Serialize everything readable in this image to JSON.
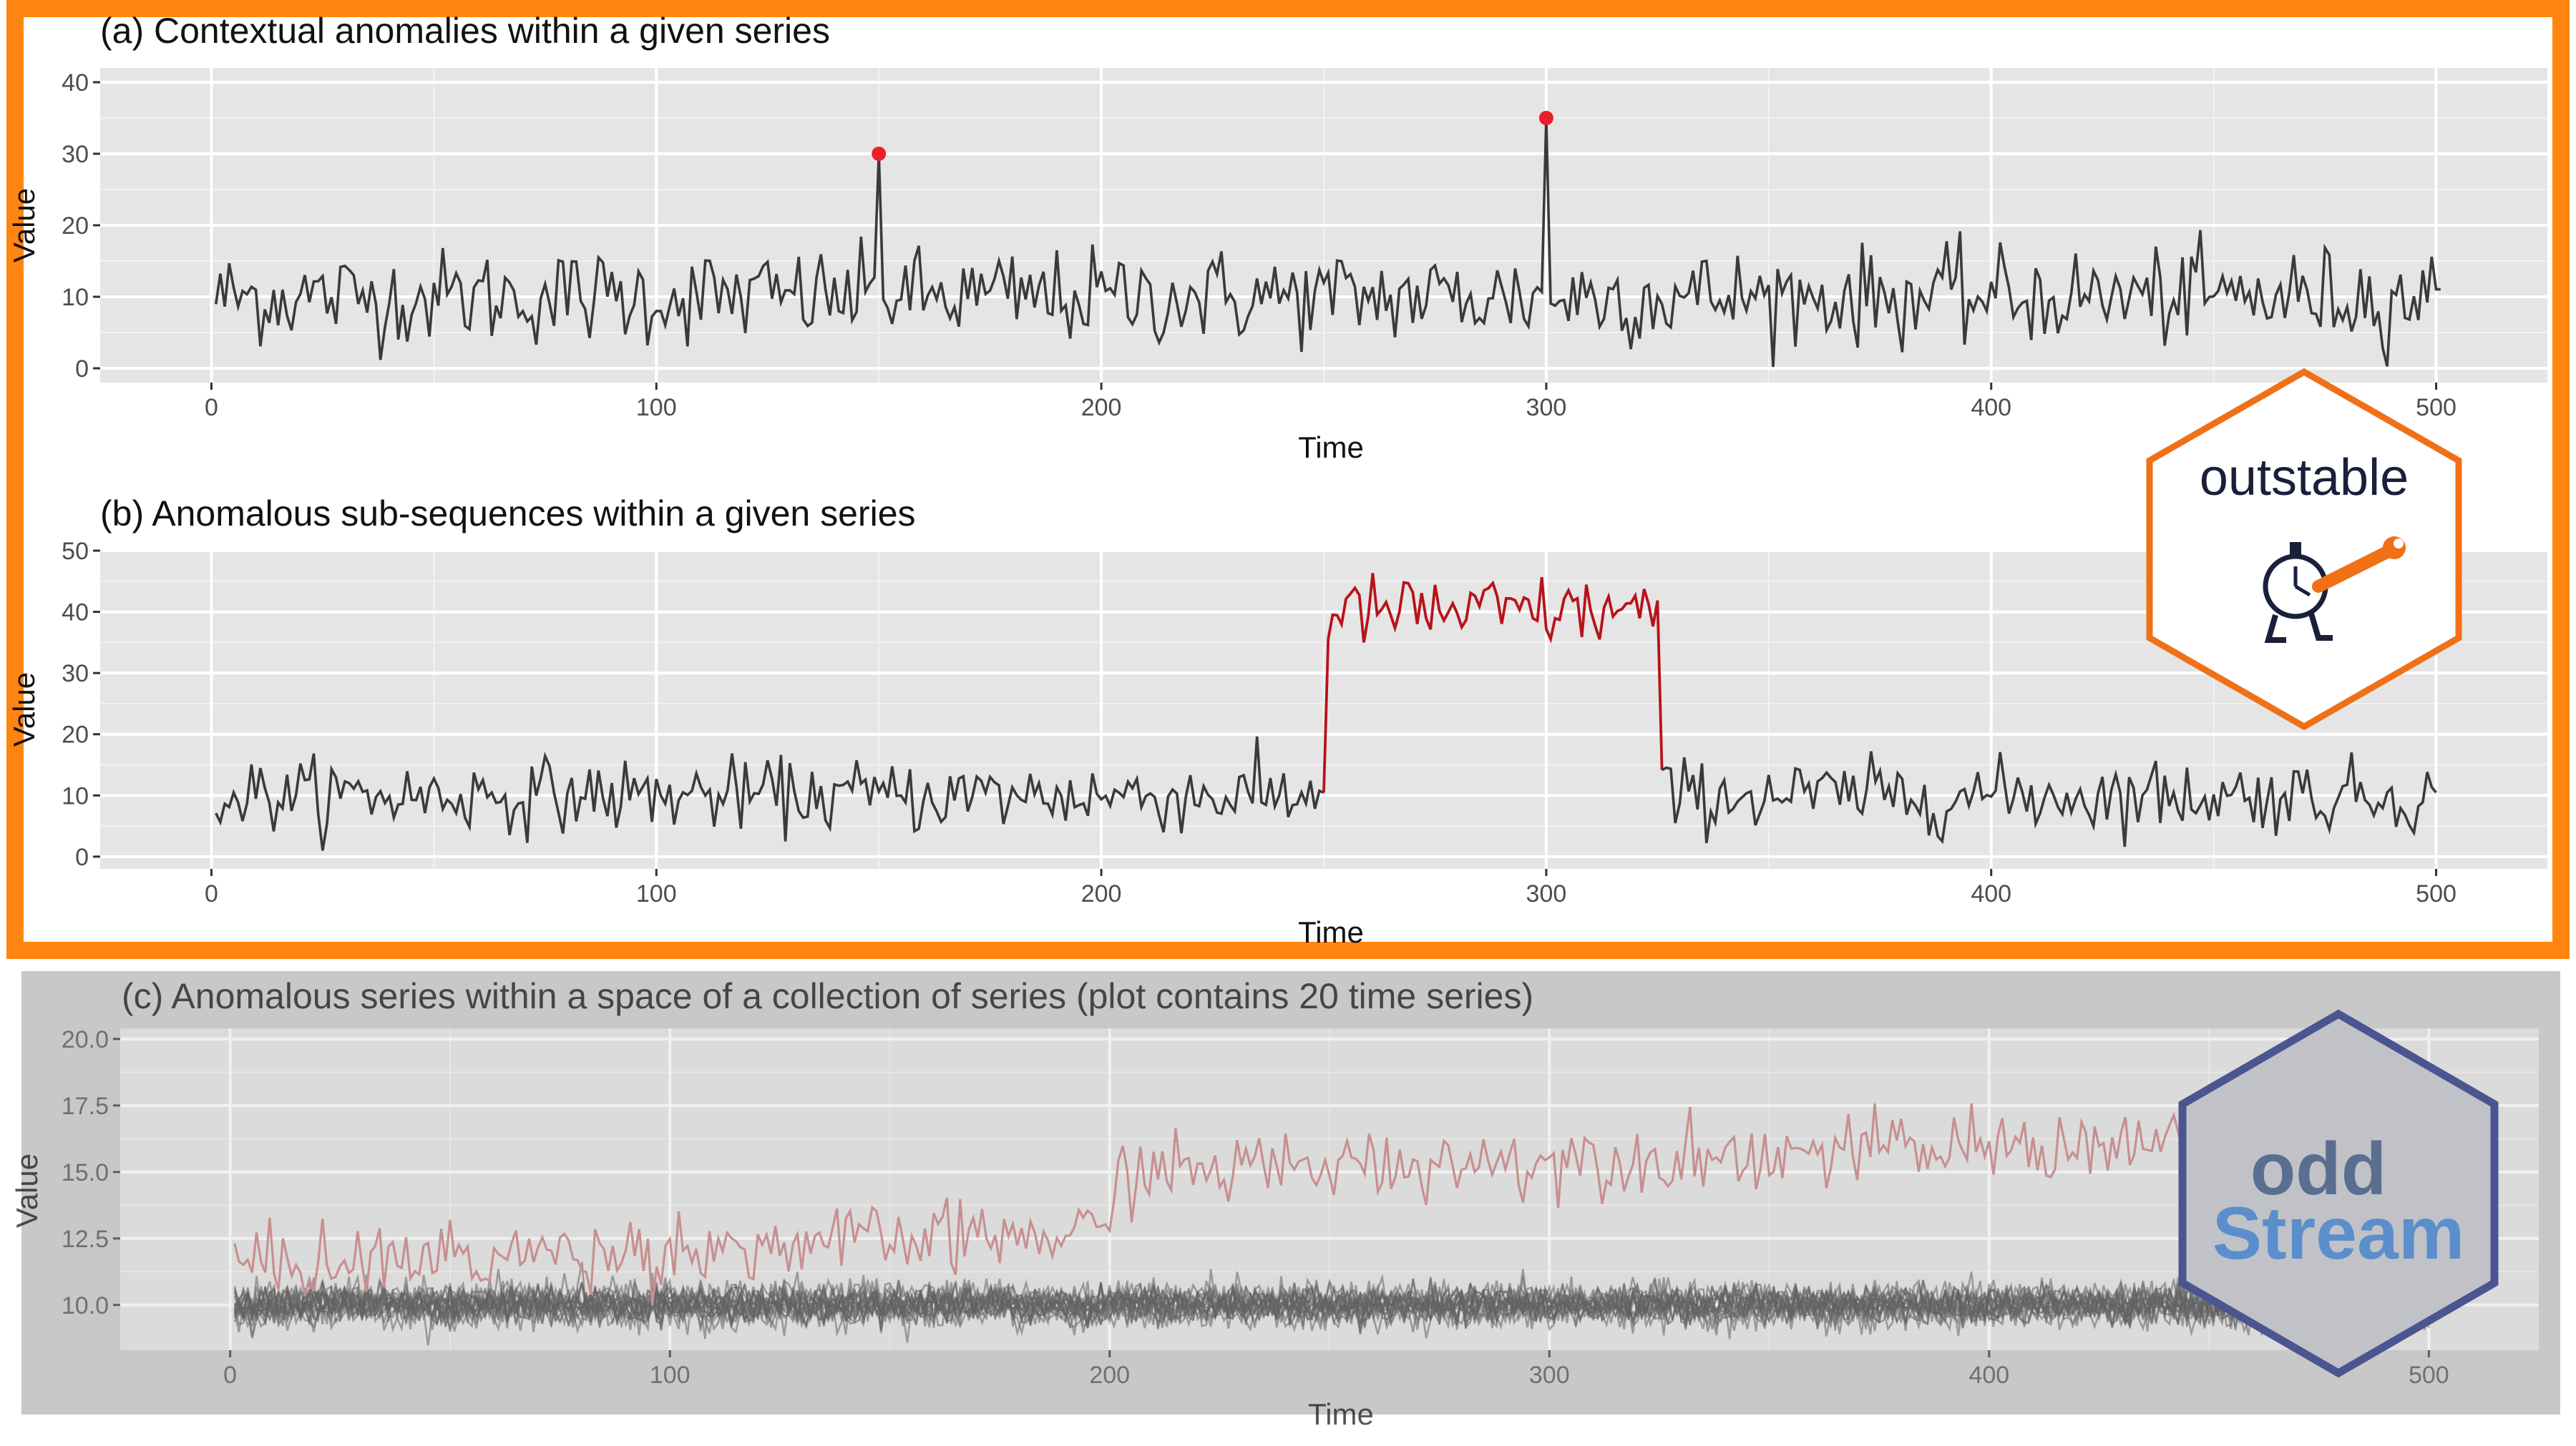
{
  "colors": {
    "frame_orange": "#ff8410",
    "panel_grey": "#e5e5e5",
    "series_dark": "#3a3a3a",
    "anomaly_red": "#b8121a",
    "anomaly_point": "#e8202a",
    "faded_red": "#c87878",
    "logo_outstable_border": "#f07018",
    "logo_outstable_text": "#1a1f3a",
    "logo_oddstream_border": "#4b5590",
    "logo_oddstream_odd": "#5a6f8f",
    "logo_oddstream_stream": "#5b8ecc"
  },
  "logos": {
    "outstable": {
      "text": "outstable",
      "icon": "stopwatch-wrench-icon"
    },
    "oddstream": {
      "line1": "odd",
      "line2": "Stream"
    }
  },
  "chart_data": [
    {
      "id": "a",
      "type": "line",
      "title": "(a) Contextual anomalies within a  given series",
      "xlabel": "Time",
      "ylabel": "Value",
      "xlim": [
        -25,
        525
      ],
      "ylim": [
        -2,
        42
      ],
      "xticks": [
        0,
        100,
        200,
        300,
        400,
        500
      ],
      "yticks": [
        0,
        10,
        20,
        30,
        40
      ],
      "grid": true,
      "baseline": {
        "n": 500,
        "mean": 10,
        "spread": 8
      },
      "spikes": [
        {
          "x": 150,
          "y": 30
        },
        {
          "x": 300,
          "y": 35
        }
      ],
      "anomaly_points": [
        {
          "x": 150,
          "y": 30
        },
        {
          "x": 300,
          "y": 35
        }
      ]
    },
    {
      "id": "b",
      "type": "line",
      "title": "(b) Anomalous sub-sequences within a given series",
      "xlabel": "Time",
      "ylabel": "Value",
      "xlim": [
        -25,
        525
      ],
      "ylim": [
        -2,
        50
      ],
      "xticks": [
        0,
        100,
        200,
        300,
        400,
        500
      ],
      "yticks": [
        0,
        10,
        20,
        30,
        40,
        50
      ],
      "grid": true,
      "baseline": {
        "n": 500,
        "mean": 10,
        "spread": 7
      },
      "anomalous_segment": {
        "start": 250,
        "end": 326,
        "mean": 40,
        "spread": 6
      }
    },
    {
      "id": "c",
      "type": "line",
      "title": "(c) Anomalous series within a space of a collection of series (plot contains 20 time series)",
      "xlabel": "Time",
      "ylabel": "Value",
      "xlim": [
        -25,
        525
      ],
      "ylim": [
        8.3,
        20.4
      ],
      "xticks": [
        0,
        100,
        200,
        300,
        400,
        500
      ],
      "yticks": [
        10.0,
        12.5,
        15.0,
        17.5,
        20.0
      ],
      "ytick_labels": [
        "10.0",
        "12.5",
        "15.0",
        "17.5",
        "20.0"
      ],
      "grid": true,
      "n_series": 20,
      "normal_series": {
        "count": 19,
        "mean": 10,
        "spread": 0.9
      },
      "anomalous_series": {
        "segments": [
          {
            "from": 0,
            "to": 200,
            "start_mean": 11.5,
            "end_mean": 12.7,
            "spread": 1.6
          },
          {
            "from": 200,
            "to": 500,
            "start_mean": 15.0,
            "end_mean": 16.4,
            "spread": 1.6
          }
        ]
      }
    }
  ]
}
